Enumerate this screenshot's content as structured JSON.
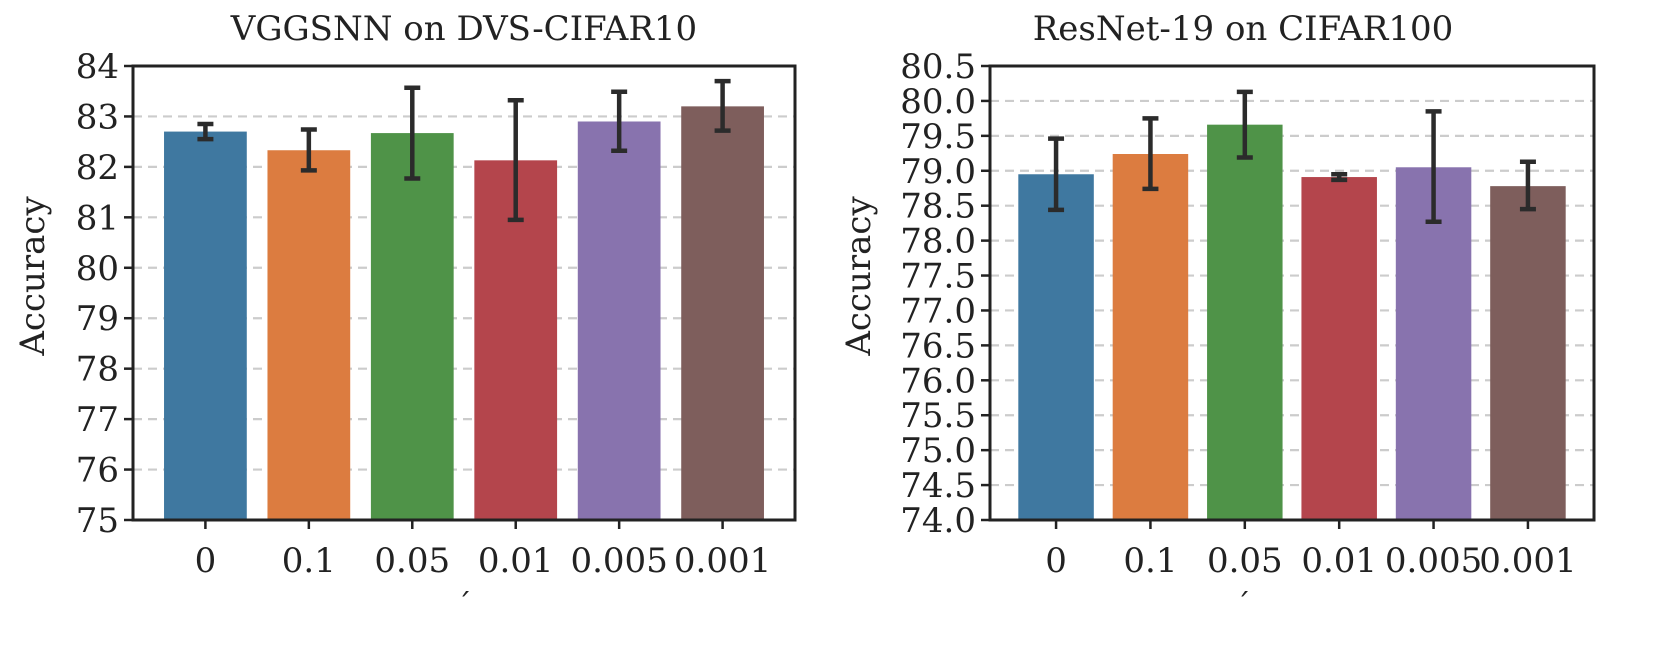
{
  "chart_data": [
    {
      "type": "bar",
      "title": "VGGSNN on DVS-CIFAR10",
      "xlabel": "´",
      "ylabel": "Accuracy",
      "categories": [
        "0",
        "0.1",
        "0.05",
        "0.01",
        "0.005",
        "0.001"
      ],
      "values": [
        82.7,
        82.33,
        82.67,
        82.13,
        82.9,
        83.2
      ],
      "error_low": [
        82.55,
        81.93,
        81.77,
        80.95,
        82.32,
        82.72
      ],
      "error_high": [
        82.85,
        82.74,
        83.57,
        83.32,
        83.49,
        83.7
      ],
      "ylim": [
        75,
        84
      ],
      "yticks": [
        "75",
        "76",
        "77",
        "78",
        "79",
        "80",
        "81",
        "82",
        "83",
        "84"
      ],
      "grid": true,
      "colors": [
        "#3f78a0",
        "#dc7c40",
        "#4f9348",
        "#b4454c",
        "#8873ae",
        "#7e5e5c"
      ]
    },
    {
      "type": "bar",
      "title": "ResNet-19 on CIFAR100",
      "xlabel": "´",
      "ylabel": "Accuracy",
      "categories": [
        "0",
        "0.1",
        "0.05",
        "0.01",
        "0.005",
        "0.001"
      ],
      "values": [
        78.95,
        79.24,
        79.66,
        78.91,
        79.05,
        78.78
      ],
      "error_low": [
        78.44,
        78.74,
        79.19,
        78.87,
        78.27,
        78.45
      ],
      "error_high": [
        79.46,
        79.75,
        80.13,
        78.95,
        79.85,
        79.13
      ],
      "ylim": [
        74.0,
        80.5
      ],
      "yticks": [
        "74.0",
        "74.5",
        "75.0",
        "75.5",
        "76.0",
        "76.5",
        "77.0",
        "77.5",
        "78.0",
        "78.5",
        "79.0",
        "79.5",
        "80.0",
        "80.5"
      ],
      "grid": true,
      "colors": [
        "#3f78a0",
        "#dc7c40",
        "#4f9348",
        "#b4454c",
        "#8873ae",
        "#7e5e5c"
      ]
    }
  ]
}
